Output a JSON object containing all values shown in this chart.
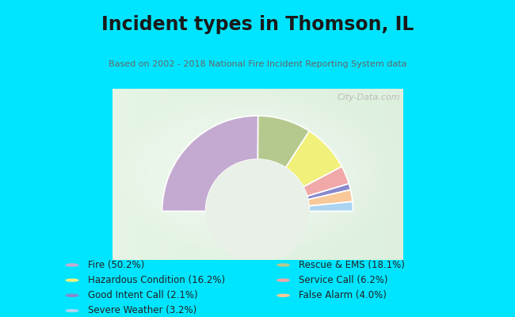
{
  "title": "Incident types in Thomson, IL",
  "subtitle": "Based on 2002 - 2018 National Fire Incident Reporting System data",
  "background_color": "#00e5ff",
  "watermark": "City-Data.com",
  "values": [
    50.2,
    18.1,
    16.2,
    6.2,
    2.1,
    4.0,
    3.2
  ],
  "colors": [
    "#c4aad0",
    "#b5c98e",
    "#f0f07a",
    "#f0a8a8",
    "#8888cc",
    "#f8c898",
    "#aad4f0"
  ],
  "legend_labels_left": [
    "Fire (50.2%)",
    "Hazardous Condition (16.2%)",
    "Good Intent Call (2.1%)",
    "Severe Weather (3.2%)"
  ],
  "legend_colors_left": [
    "#c4aad0",
    "#f0f07a",
    "#8888cc",
    "#aad4f0"
  ],
  "legend_labels_right": [
    "Rescue & EMS (18.1%)",
    "Service Call (6.2%)",
    "False Alarm (4.0%)"
  ],
  "legend_colors_right": [
    "#b5c98e",
    "#f0a8a8",
    "#f8c898"
  ]
}
